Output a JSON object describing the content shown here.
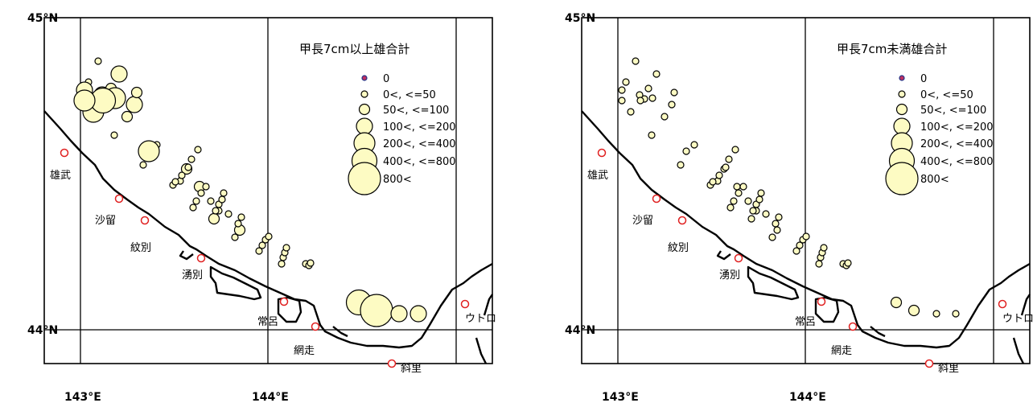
{
  "colors": {
    "bubble_fill": "#fdfbc3",
    "bubble_stroke": "#000000",
    "zero_marker": "#c03060",
    "town_marker": "#e02020"
  },
  "axis": {
    "lat_labels": [
      "45°N",
      "44°N"
    ],
    "lon_labels": [
      "143°E",
      "144°E"
    ]
  },
  "towns": [
    {
      "name": "雄武"
    },
    {
      "name": "沙留"
    },
    {
      "name": "紋別"
    },
    {
      "name": "湧別"
    },
    {
      "name": "常呂"
    },
    {
      "name": "網走"
    },
    {
      "name": "斜里"
    },
    {
      "name": "ウトロ"
    }
  ],
  "legend": {
    "classes": [
      "0",
      "0<, <=50",
      "50<, <=100",
      "100<, <=200",
      "200<, <=400",
      "400<, <=800",
      "800<"
    ]
  },
  "maps": [
    {
      "title": "甲長7cm以上雄合計",
      "marks": [
        [
          2,
          1
        ],
        [
          3,
          1
        ],
        [
          4,
          2
        ],
        [
          5,
          3
        ],
        [
          2,
          3
        ],
        [
          3,
          4
        ],
        [
          4,
          3
        ],
        [
          2,
          2
        ],
        [
          3,
          2
        ],
        [
          4,
          4
        ],
        [
          5,
          5
        ],
        [
          6,
          4
        ],
        [
          2,
          1
        ],
        [
          3,
          3
        ],
        [
          4,
          2
        ],
        [
          3,
          1
        ],
        [
          9,
          1
        ],
        [
          10,
          4
        ],
        [
          11,
          1
        ],
        [
          12,
          1
        ],
        [
          13,
          2
        ],
        [
          9,
          1
        ],
        [
          10,
          1
        ],
        [
          11,
          1
        ],
        [
          12,
          1
        ],
        [
          13,
          1
        ],
        [
          14,
          2
        ],
        [
          9,
          1
        ],
        [
          10,
          1
        ],
        [
          11,
          1
        ],
        [
          12,
          1
        ],
        [
          13,
          1
        ],
        [
          14,
          2
        ],
        [
          15,
          1
        ],
        [
          9,
          1
        ],
        [
          10,
          1
        ],
        [
          11,
          1
        ],
        [
          12,
          1
        ],
        [
          13,
          1
        ],
        [
          14,
          1
        ],
        [
          15,
          2
        ],
        [
          9,
          1
        ],
        [
          10,
          1
        ],
        [
          11,
          1
        ],
        [
          12,
          1
        ],
        [
          13,
          1
        ],
        [
          14,
          1
        ],
        [
          9,
          1
        ],
        [
          10,
          1
        ],
        [
          11,
          1
        ],
        [
          12,
          1
        ],
        [
          9,
          1
        ],
        [
          10,
          1
        ],
        [
          11,
          1
        ],
        [
          16,
          5
        ],
        [
          17,
          6
        ],
        [
          18,
          3
        ],
        [
          19,
          3
        ]
      ]
    },
    {
      "title": "甲長7cm未満雄合計",
      "marks": [
        [
          2,
          1
        ],
        [
          3,
          1
        ],
        [
          4,
          1
        ],
        [
          5,
          1
        ],
        [
          2,
          1
        ],
        [
          3,
          1
        ],
        [
          4,
          1
        ],
        [
          2,
          1
        ],
        [
          3,
          1
        ],
        [
          4,
          1
        ],
        [
          5,
          1
        ],
        [
          6,
          1
        ],
        [
          2,
          1
        ],
        [
          3,
          1
        ],
        [
          4,
          1
        ],
        [
          3,
          1
        ],
        [
          9,
          1
        ],
        [
          10,
          1
        ],
        [
          11,
          1
        ],
        [
          12,
          1
        ],
        [
          13,
          1
        ],
        [
          9,
          1
        ],
        [
          10,
          1
        ],
        [
          11,
          1
        ],
        [
          12,
          1
        ],
        [
          13,
          1
        ],
        [
          14,
          1
        ],
        [
          9,
          1
        ],
        [
          10,
          1
        ],
        [
          11,
          1
        ],
        [
          12,
          1
        ],
        [
          13,
          1
        ],
        [
          14,
          1
        ],
        [
          15,
          1
        ],
        [
          9,
          1
        ],
        [
          10,
          1
        ],
        [
          11,
          1
        ],
        [
          12,
          1
        ],
        [
          13,
          1
        ],
        [
          14,
          1
        ],
        [
          15,
          1
        ],
        [
          9,
          1
        ],
        [
          10,
          1
        ],
        [
          11,
          1
        ],
        [
          12,
          1
        ],
        [
          13,
          1
        ],
        [
          14,
          1
        ],
        [
          9,
          1
        ],
        [
          10,
          1
        ],
        [
          11,
          1
        ],
        [
          12,
          1
        ],
        [
          9,
          1
        ],
        [
          10,
          1
        ],
        [
          11,
          1
        ],
        [
          16,
          2
        ],
        [
          17,
          2
        ],
        [
          18,
          1
        ],
        [
          19,
          1
        ]
      ]
    }
  ]
}
